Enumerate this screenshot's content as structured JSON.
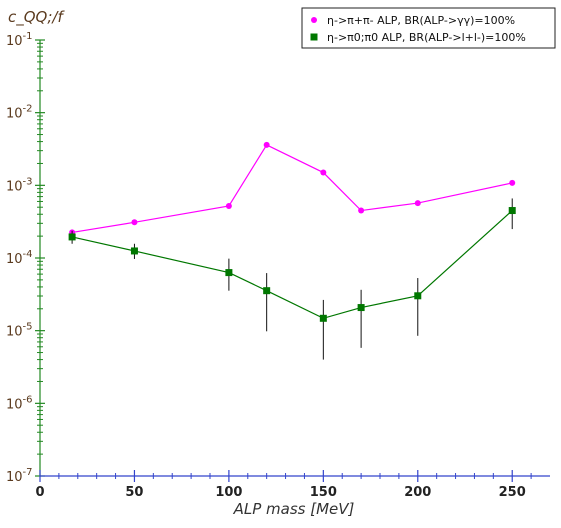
{
  "chart_data": {
    "type": "line",
    "xlabel": "ALP mass   [MeV]",
    "ylabel": "c_QQ;/f",
    "xlim": [
      0,
      270
    ],
    "ylim": [
      1e-07,
      0.1
    ],
    "yscale": "log",
    "xticks": [
      "0",
      "50",
      "100",
      "150",
      "200",
      "250"
    ],
    "yticks": [
      {
        "base": "10",
        "exp": "-1"
      },
      {
        "base": "10",
        "exp": "-2"
      },
      {
        "base": "10",
        "exp": "-3"
      },
      {
        "base": "10",
        "exp": "-4"
      },
      {
        "base": "10",
        "exp": "-5"
      },
      {
        "base": "10",
        "exp": "-6"
      },
      {
        "base": "10",
        "exp": "-7"
      }
    ],
    "legend_position": "top-right",
    "series": [
      {
        "name": "η->π+π- ALP, BR(ALP->γγ)=100%",
        "color": "#ff00ff",
        "marker": "circle",
        "x": [
          17,
          50,
          100,
          120,
          150,
          170,
          200,
          250
        ],
        "y": [
          0.000225,
          0.00031,
          0.00052,
          0.0036,
          0.0015,
          0.00045,
          0.00057,
          0.00108
        ]
      },
      {
        "name": "η->π0;π0 ALP, BR(ALP->l+l-)=100%",
        "color": "#007700",
        "marker": "square",
        "x": [
          17,
          50,
          100,
          120,
          150,
          170,
          200,
          250
        ],
        "y": [
          0.000195,
          0.000125,
          6.3e-05,
          3.55e-05,
          1.48e-05,
          2.08e-05,
          3.02e-05,
          0.00045
        ],
        "err_low": [
          0.000157,
          9.7e-05,
          3.55e-05,
          9.8e-06,
          4e-06,
          5.8e-06,
          8.5e-06,
          0.00025
        ],
        "err_high": [
          0.000237,
          0.000157,
          9.8e-05,
          6.2e-05,
          2.65e-05,
          3.65e-05,
          5.3e-05,
          0.00066
        ]
      }
    ]
  }
}
